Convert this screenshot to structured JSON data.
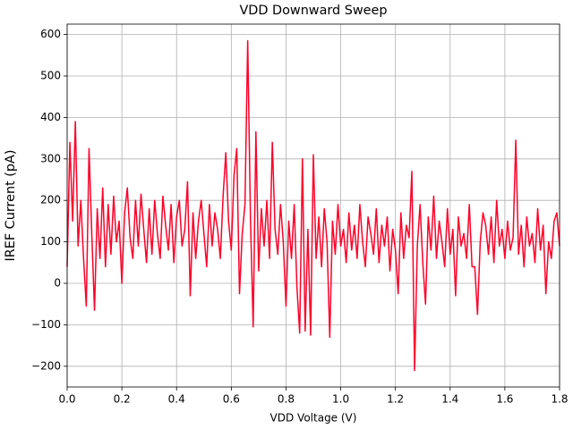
{
  "chart_data": {
    "type": "line",
    "title": "VDD Downward Sweep",
    "x_label": "VDD Voltage (V)",
    "y_label": "IREF Current (pA)",
    "x": [
      0,
      0.01,
      0.02,
      0.03,
      0.04,
      0.05,
      0.06,
      0.07,
      0.08,
      0.09,
      0.1,
      0.11,
      0.12,
      0.13,
      0.14,
      0.15,
      0.16,
      0.17,
      0.18,
      0.19,
      0.2,
      0.21,
      0.22,
      0.23,
      0.24,
      0.25,
      0.26,
      0.27,
      0.28,
      0.29,
      0.3,
      0.31,
      0.32,
      0.33,
      0.34,
      0.35,
      0.36,
      0.37,
      0.38,
      0.39,
      0.4,
      0.41,
      0.42,
      0.43,
      0.44,
      0.45,
      0.46,
      0.47,
      0.48,
      0.49,
      0.5,
      0.51,
      0.52,
      0.53,
      0.54,
      0.55,
      0.56,
      0.57,
      0.58,
      0.59,
      0.6,
      0.61,
      0.62,
      0.63,
      0.64,
      0.65,
      0.66,
      0.67,
      0.68,
      0.69,
      0.7,
      0.71,
      0.72,
      0.73,
      0.74,
      0.75,
      0.76,
      0.77,
      0.78,
      0.79,
      0.8,
      0.81,
      0.82,
      0.83,
      0.84,
      0.85,
      0.86,
      0.87,
      0.88,
      0.89,
      0.9,
      0.91,
      0.92,
      0.93,
      0.94,
      0.95,
      0.96,
      0.97,
      0.98,
      0.99,
      1.0,
      1.01,
      1.02,
      1.03,
      1.04,
      1.05,
      1.06,
      1.07,
      1.08,
      1.09,
      1.1,
      1.11,
      1.12,
      1.13,
      1.14,
      1.15,
      1.16,
      1.17,
      1.18,
      1.19,
      1.2,
      1.21,
      1.22,
      1.23,
      1.24,
      1.25,
      1.26,
      1.27,
      1.28,
      1.29,
      1.3,
      1.31,
      1.32,
      1.33,
      1.34,
      1.35,
      1.36,
      1.37,
      1.38,
      1.39,
      1.4,
      1.41,
      1.42,
      1.43,
      1.44,
      1.45,
      1.46,
      1.47,
      1.48,
      1.49,
      1.5,
      1.51,
      1.52,
      1.53,
      1.54,
      1.55,
      1.56,
      1.57,
      1.58,
      1.59,
      1.6,
      1.61,
      1.62,
      1.63,
      1.64,
      1.65,
      1.66,
      1.67,
      1.68,
      1.69,
      1.7,
      1.71,
      1.72,
      1.73,
      1.74,
      1.75,
      1.76,
      1.77,
      1.78,
      1.79,
      1.8
    ],
    "series": [
      {
        "color": "#ff0028",
        "values": [
          40,
          340,
          150,
          390,
          90,
          200,
          60,
          -55,
          325,
          120,
          -65,
          180,
          60,
          230,
          40,
          190,
          70,
          210,
          100,
          150,
          0,
          170,
          230,
          110,
          60,
          200,
          90,
          215,
          130,
          50,
          180,
          70,
          200,
          120,
          60,
          210,
          140,
          80,
          190,
          50,
          160,
          200,
          90,
          130,
          245,
          -30,
          170,
          60,
          150,
          200,
          120,
          40,
          190,
          90,
          170,
          130,
          60,
          210,
          315,
          150,
          80,
          260,
          325,
          -25,
          120,
          190,
          585,
          160,
          -105,
          365,
          30,
          180,
          90,
          200,
          60,
          340,
          130,
          70,
          190,
          100,
          -55,
          150,
          60,
          190,
          -10,
          -120,
          300,
          -115,
          130,
          -125,
          310,
          60,
          160,
          40,
          180,
          100,
          -130,
          150,
          70,
          190,
          90,
          130,
          50,
          170,
          80,
          140,
          60,
          190,
          100,
          40,
          160,
          120,
          70,
          180,
          50,
          140,
          90,
          160,
          30,
          130,
          80,
          -25,
          170,
          60,
          140,
          110,
          270,
          -210,
          90,
          190,
          50,
          -50,
          160,
          80,
          210,
          60,
          150,
          100,
          40,
          180,
          70,
          130,
          -30,
          160,
          90,
          120,
          60,
          190,
          40,
          40,
          -75,
          100,
          170,
          140,
          70,
          160,
          50,
          200,
          90,
          130,
          60,
          150,
          80,
          110,
          345,
          70,
          140,
          40,
          160,
          90,
          120,
          50,
          180,
          80,
          140,
          -25,
          100,
          60,
          150,
          170,
          90
        ]
      }
    ],
    "xlim": [
      0,
      1.8
    ],
    "ylim": [
      -250,
      625
    ],
    "xticks": [
      {
        "value": 0,
        "label": "0.0"
      },
      0.2,
      0.4,
      0.6,
      0.8,
      {
        "value": 1,
        "label": "1.0"
      },
      1.2,
      1.4,
      1.6,
      1.8
    ],
    "yticks": [
      {
        "value": -200,
        "label": "−200"
      },
      {
        "value": -100,
        "label": "−100"
      },
      0,
      100,
      200,
      300,
      400,
      500,
      600
    ],
    "grid": true
  }
}
